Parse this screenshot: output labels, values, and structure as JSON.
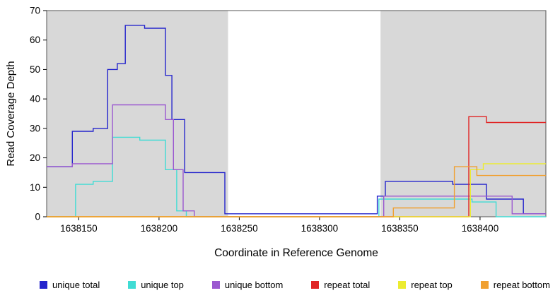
{
  "chart_data": {
    "type": "line",
    "step": "after",
    "title": "",
    "xlabel": "Coordinate in Reference Genome",
    "ylabel": "Read Coverage Depth",
    "xlim": [
      1638130,
      1638441
    ],
    "ylim": [
      0,
      70
    ],
    "xticks": [
      1638150,
      1638200,
      1638250,
      1638300,
      1638350,
      1638400
    ],
    "yticks": [
      0,
      10,
      20,
      30,
      40,
      50,
      60,
      70
    ],
    "grid": false,
    "legend_position": "bottom",
    "shade_color": "#d8d8d8",
    "shaded_regions": [
      {
        "from": 1638130,
        "to": 1638243
      },
      {
        "from": 1638338,
        "to": 1638441
      }
    ],
    "series": [
      {
        "name": "unique total",
        "color": "#2424cc",
        "points": [
          [
            1638130,
            17
          ],
          [
            1638146,
            29
          ],
          [
            1638159,
            30
          ],
          [
            1638168,
            50
          ],
          [
            1638174,
            52
          ],
          [
            1638179,
            65
          ],
          [
            1638191,
            64
          ],
          [
            1638204,
            48
          ],
          [
            1638208,
            33
          ],
          [
            1638216,
            15
          ],
          [
            1638241,
            1
          ],
          [
            1638336,
            7
          ],
          [
            1638341,
            12
          ],
          [
            1638383,
            11
          ],
          [
            1638404,
            6
          ],
          [
            1638427,
            1
          ]
        ]
      },
      {
        "name": "unique top",
        "color": "#40dcd4",
        "points": [
          [
            1638130,
            0
          ],
          [
            1638148,
            11
          ],
          [
            1638159,
            12
          ],
          [
            1638171,
            27
          ],
          [
            1638188,
            26
          ],
          [
            1638204,
            16
          ],
          [
            1638211,
            2
          ],
          [
            1638217,
            0
          ],
          [
            1638337,
            6
          ],
          [
            1638395,
            5
          ],
          [
            1638410,
            0
          ]
        ]
      },
      {
        "name": "unique bottom",
        "color": "#9b59d0",
        "points": [
          [
            1638130,
            17
          ],
          [
            1638146,
            18
          ],
          [
            1638171,
            38
          ],
          [
            1638204,
            33
          ],
          [
            1638209,
            16
          ],
          [
            1638215,
            2
          ],
          [
            1638222,
            0
          ],
          [
            1638340,
            7
          ],
          [
            1638420,
            1
          ]
        ]
      },
      {
        "name": "repeat total",
        "color": "#e02424",
        "points": [
          [
            1638130,
            0
          ],
          [
            1638393,
            34
          ],
          [
            1638404,
            32
          ]
        ]
      },
      {
        "name": "repeat top",
        "color": "#ecec30",
        "points": [
          [
            1638130,
            0
          ],
          [
            1638394,
            16
          ],
          [
            1638402,
            18
          ]
        ]
      },
      {
        "name": "repeat bottom",
        "color": "#f0a030",
        "points": [
          [
            1638130,
            0
          ],
          [
            1638346,
            3
          ],
          [
            1638384,
            17
          ],
          [
            1638398,
            14
          ]
        ]
      }
    ]
  }
}
